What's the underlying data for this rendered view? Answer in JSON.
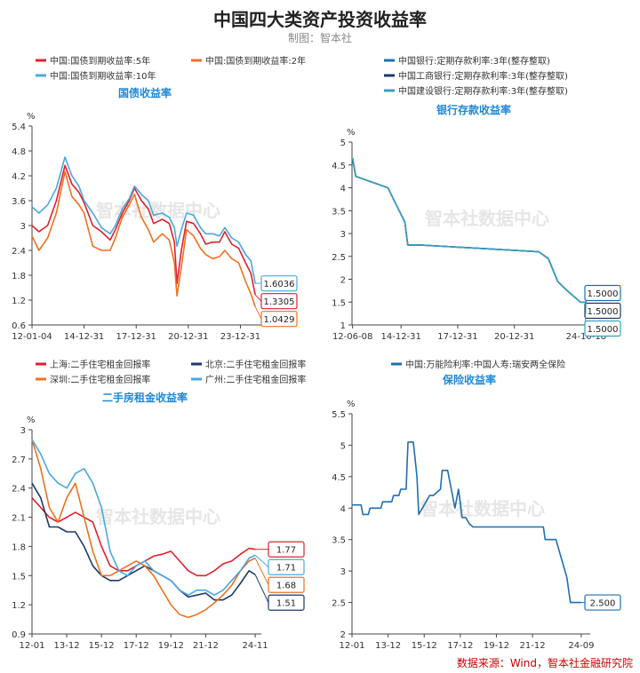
{
  "page": {
    "title": "中国四大类资产投资收益率",
    "subtitle": "制图：智本社",
    "source": "数据来源：Wind，智本社金融研究院",
    "watermark": "智本社数据中心"
  },
  "chart_data": [
    {
      "type": "line",
      "title": "国债收益率",
      "ylabel": "%",
      "ylim": [
        0.6,
        5.4
      ],
      "yticks": [
        0.6,
        1.2,
        1.8,
        2.4,
        3,
        3.6,
        4.2,
        4.8,
        5.4
      ],
      "ytick_labels": [
        "0.6",
        "1.2",
        "1.8",
        "2.4",
        "3",
        "3.6",
        "4.2",
        "4.8",
        "5.4"
      ],
      "xlim": [
        2012.0,
        2025.0
      ],
      "xticks": [
        2012.0,
        2015.0,
        2018.0,
        2021.0,
        2024.0
      ],
      "xtick_labels": [
        "12-01-04",
        "14-12-31",
        "17-12-31",
        "20-12-31",
        "23-12-31"
      ],
      "legend_position": "top",
      "series": [
        {
          "name": "中国:国债到期收益率:5年",
          "color": "#e0202c",
          "end_label": "1.3305",
          "x": [
            2012.0,
            2012.4,
            2012.9,
            2013.4,
            2013.9,
            2014.3,
            2014.7,
            2015.0,
            2015.5,
            2016.0,
            2016.5,
            2016.8,
            2017.2,
            2017.6,
            2017.9,
            2018.3,
            2018.7,
            2019.0,
            2019.5,
            2019.9,
            2020.2,
            2020.35,
            2020.6,
            2020.9,
            2021.3,
            2021.7,
            2022.0,
            2022.4,
            2022.8,
            2023.1,
            2023.5,
            2023.9,
            2024.3,
            2024.6,
            2024.85
          ],
          "values": [
            3.0,
            2.85,
            3.0,
            3.6,
            4.45,
            4.0,
            3.8,
            3.55,
            3.0,
            2.85,
            2.65,
            2.9,
            3.3,
            3.6,
            3.9,
            3.6,
            3.4,
            3.05,
            3.15,
            3.05,
            2.6,
            1.6,
            2.4,
            3.1,
            3.05,
            2.8,
            2.55,
            2.6,
            2.6,
            2.85,
            2.55,
            2.45,
            2.1,
            1.85,
            1.3305
          ]
        },
        {
          "name": "中国:国债到期收益率:2年",
          "color": "#f07020",
          "end_label": "1.0429",
          "x": [
            2012.0,
            2012.4,
            2012.9,
            2013.4,
            2013.9,
            2014.3,
            2014.7,
            2015.0,
            2015.5,
            2016.0,
            2016.5,
            2016.8,
            2017.2,
            2017.6,
            2017.9,
            2018.3,
            2018.7,
            2019.0,
            2019.5,
            2019.9,
            2020.2,
            2020.35,
            2020.6,
            2020.9,
            2021.3,
            2021.7,
            2022.0,
            2022.4,
            2022.8,
            2023.1,
            2023.5,
            2023.9,
            2024.3,
            2024.6,
            2024.85
          ],
          "values": [
            2.75,
            2.4,
            2.7,
            3.3,
            4.3,
            3.7,
            3.5,
            3.3,
            2.5,
            2.4,
            2.4,
            2.7,
            3.2,
            3.5,
            3.75,
            3.2,
            2.9,
            2.6,
            2.8,
            2.65,
            2.1,
            1.3,
            2.0,
            2.9,
            2.75,
            2.45,
            2.3,
            2.2,
            2.25,
            2.4,
            2.2,
            2.1,
            1.65,
            1.35,
            1.0429
          ]
        },
        {
          "name": "中国:国债到期收益率:10年",
          "color": "#4aa8e0",
          "end_label": "1.6036",
          "x": [
            2012.0,
            2012.4,
            2012.9,
            2013.4,
            2013.9,
            2014.3,
            2014.7,
            2015.0,
            2015.5,
            2016.0,
            2016.5,
            2016.8,
            2017.2,
            2017.6,
            2017.9,
            2018.3,
            2018.7,
            2019.0,
            2019.5,
            2019.9,
            2020.2,
            2020.35,
            2020.6,
            2020.9,
            2021.3,
            2021.7,
            2022.0,
            2022.4,
            2022.8,
            2023.1,
            2023.5,
            2023.9,
            2024.3,
            2024.6,
            2024.85
          ],
          "values": [
            3.45,
            3.3,
            3.5,
            3.9,
            4.65,
            4.2,
            3.95,
            3.6,
            3.3,
            2.95,
            2.8,
            3.0,
            3.4,
            3.65,
            3.95,
            3.75,
            3.6,
            3.25,
            3.3,
            3.2,
            2.95,
            2.5,
            2.9,
            3.3,
            3.25,
            2.95,
            2.8,
            2.8,
            2.75,
            2.95,
            2.7,
            2.6,
            2.3,
            2.15,
            1.6036
          ]
        }
      ]
    },
    {
      "type": "line",
      "title": "银行存款收益率",
      "ylabel": "%",
      "ylim": [
        1,
        5
      ],
      "yticks": [
        1,
        1.5,
        2,
        2.5,
        3,
        3.5,
        4,
        4.5,
        5
      ],
      "ytick_labels": [
        "1",
        "1.5",
        "2",
        "2.5",
        "3",
        "3.5",
        "4",
        "4.5",
        "5"
      ],
      "xlim": [
        2012.4,
        2025.3
      ],
      "xticks": [
        2012.43,
        2015.0,
        2018.0,
        2021.0,
        2024.8
      ],
      "xtick_labels": [
        "12-06-08",
        "14-12-31",
        "17-12-31",
        "20-12-31",
        "24-10-18"
      ],
      "legend_position": "top-right",
      "series": [
        {
          "name": "中国银行:定期存款利率:3年(整存整取)",
          "color": "#1f6fb0",
          "end_label": "1.5000",
          "x": [
            2012.43,
            2012.6,
            2014.3,
            2014.6,
            2014.9,
            2015.2,
            2015.35,
            2016.0,
            2022.3,
            2022.8,
            2023.3,
            2023.8,
            2024.5,
            2024.8
          ],
          "values": [
            4.65,
            4.25,
            4.0,
            3.75,
            3.5,
            3.25,
            2.75,
            2.75,
            2.6,
            2.45,
            1.95,
            1.75,
            1.5,
            1.5
          ]
        },
        {
          "name": "中国工商银行:定期存款利率:3年(整存整取)",
          "color": "#1a3a6a",
          "end_label": "1.5000",
          "x": [
            2012.43,
            2012.6,
            2014.3,
            2014.6,
            2014.9,
            2015.2,
            2015.35,
            2016.0,
            2022.3,
            2022.8,
            2023.3,
            2023.8,
            2024.5,
            2024.8
          ],
          "values": [
            4.65,
            4.25,
            4.0,
            3.75,
            3.5,
            3.25,
            2.75,
            2.75,
            2.6,
            2.45,
            1.95,
            1.75,
            1.5,
            1.5
          ]
        },
        {
          "name": "中国建设银行:定期存款利率:3年(整存整取)",
          "color": "#3aa0c0",
          "end_label": "1.5000",
          "x": [
            2012.43,
            2012.6,
            2014.3,
            2014.6,
            2014.9,
            2015.2,
            2015.35,
            2016.0,
            2022.3,
            2022.8,
            2023.3,
            2023.8,
            2024.5,
            2024.8
          ],
          "values": [
            4.65,
            4.25,
            4.0,
            3.75,
            3.5,
            3.25,
            2.75,
            2.75,
            2.6,
            2.45,
            1.95,
            1.75,
            1.5,
            1.5
          ]
        }
      ]
    },
    {
      "type": "line",
      "title": "二手房租金收益率",
      "ylabel": "%",
      "ylim": [
        0.9,
        3
      ],
      "yticks": [
        0.9,
        1.2,
        1.5,
        1.8,
        2.1,
        2.4,
        2.7,
        3
      ],
      "ytick_labels": [
        "0.9",
        "1.2",
        "1.5",
        "1.8",
        "2.1",
        "2.4",
        "2.7",
        "3"
      ],
      "xlim": [
        2012.0,
        2025.0
      ],
      "xticks": [
        2012.0,
        2014.0,
        2016.0,
        2018.0,
        2020.0,
        2022.0,
        2024.85
      ],
      "xtick_labels": [
        "12-01",
        "13-12",
        "15-12",
        "17-12",
        "19-12",
        "21-12",
        "24-11"
      ],
      "legend_position": "top",
      "series": [
        {
          "name": "上海:二手住宅租金回报率",
          "color": "#e0202c",
          "end_label": "1.77",
          "x": [
            2012.0,
            2012.5,
            2013.0,
            2013.5,
            2014.0,
            2014.5,
            2015.0,
            2015.5,
            2016.0,
            2016.5,
            2017.0,
            2017.5,
            2018.0,
            2018.5,
            2019.0,
            2019.5,
            2020.0,
            2020.5,
            2021.0,
            2021.5,
            2022.0,
            2022.5,
            2023.0,
            2023.5,
            2024.0,
            2024.5,
            2024.85
          ],
          "values": [
            2.3,
            2.2,
            2.1,
            2.05,
            2.1,
            2.15,
            2.1,
            2.05,
            1.8,
            1.6,
            1.55,
            1.55,
            1.6,
            1.65,
            1.7,
            1.72,
            1.75,
            1.65,
            1.55,
            1.5,
            1.5,
            1.55,
            1.62,
            1.65,
            1.72,
            1.78,
            1.77
          ]
        },
        {
          "name": "北京:二手住宅租金回报率",
          "color": "#1a3a6a",
          "end_label": "1.51",
          "x": [
            2012.0,
            2012.5,
            2013.0,
            2013.5,
            2014.0,
            2014.5,
            2015.0,
            2015.5,
            2016.0,
            2016.5,
            2017.0,
            2017.5,
            2018.0,
            2018.5,
            2019.0,
            2019.5,
            2020.0,
            2020.5,
            2021.0,
            2021.5,
            2022.0,
            2022.5,
            2023.0,
            2023.5,
            2024.0,
            2024.5,
            2024.85
          ],
          "values": [
            2.45,
            2.3,
            2.0,
            2.0,
            1.95,
            1.95,
            1.8,
            1.6,
            1.5,
            1.45,
            1.45,
            1.5,
            1.55,
            1.6,
            1.55,
            1.5,
            1.45,
            1.35,
            1.28,
            1.3,
            1.32,
            1.25,
            1.25,
            1.3,
            1.42,
            1.55,
            1.51
          ]
        },
        {
          "name": "深圳:二手住宅租金回报率",
          "color": "#f07020",
          "end_label": "1.68",
          "x": [
            2012.0,
            2012.5,
            2013.0,
            2013.5,
            2014.0,
            2014.5,
            2015.0,
            2015.5,
            2016.0,
            2016.5,
            2017.0,
            2017.5,
            2018.0,
            2018.5,
            2019.0,
            2019.5,
            2020.0,
            2020.5,
            2021.0,
            2021.5,
            2022.0,
            2022.5,
            2023.0,
            2023.5,
            2024.0,
            2024.5,
            2024.85
          ],
          "values": [
            2.9,
            2.6,
            2.2,
            2.05,
            2.3,
            2.45,
            2.1,
            1.75,
            1.5,
            1.5,
            1.55,
            1.6,
            1.65,
            1.6,
            1.5,
            1.35,
            1.2,
            1.1,
            1.07,
            1.1,
            1.15,
            1.22,
            1.3,
            1.4,
            1.55,
            1.65,
            1.68
          ]
        },
        {
          "name": "广州:二手住宅租金回报率",
          "color": "#4aa8e0",
          "end_label": "1.71",
          "x": [
            2012.0,
            2012.5,
            2013.0,
            2013.5,
            2014.0,
            2014.5,
            2015.0,
            2015.5,
            2016.0,
            2016.5,
            2017.0,
            2017.5,
            2018.0,
            2018.5,
            2019.0,
            2019.5,
            2020.0,
            2020.5,
            2021.0,
            2021.5,
            2022.0,
            2022.5,
            2023.0,
            2023.5,
            2024.0,
            2024.5,
            2024.85
          ],
          "values": [
            2.9,
            2.75,
            2.55,
            2.45,
            2.4,
            2.55,
            2.6,
            2.45,
            2.2,
            1.75,
            1.55,
            1.5,
            1.6,
            1.65,
            1.55,
            1.5,
            1.45,
            1.35,
            1.3,
            1.35,
            1.35,
            1.3,
            1.35,
            1.45,
            1.55,
            1.68,
            1.71
          ]
        }
      ]
    },
    {
      "type": "line",
      "title": "保险收益率",
      "ylabel": "%",
      "ylim": [
        2,
        5.5
      ],
      "yticks": [
        2,
        2.5,
        3,
        3.5,
        4,
        4.5,
        5,
        5.5
      ],
      "ytick_labels": [
        "2",
        "2.5",
        "3",
        "3.5",
        "4",
        "4.5",
        "5",
        "5.5"
      ],
      "xlim": [
        2012.0,
        2025.0
      ],
      "xticks": [
        2012.0,
        2014.0,
        2016.0,
        2018.0,
        2020.0,
        2022.0,
        2024.7
      ],
      "xtick_labels": [
        "12-01",
        "13-12",
        "15-12",
        "17-12",
        "19-12",
        "21-12",
        "24-09"
      ],
      "legend_position": "top",
      "series": [
        {
          "name": "中国:万能险利率:中国人寿:瑞安两全保险",
          "color": "#1f6fb0",
          "end_label": "2.500",
          "x": [
            2012.0,
            2012.5,
            2012.6,
            2012.9,
            2013.0,
            2013.6,
            2013.7,
            2014.2,
            2014.3,
            2014.6,
            2014.7,
            2015.0,
            2015.1,
            2015.4,
            2015.6,
            2015.7,
            2015.9,
            2016.3,
            2016.5,
            2016.9,
            2017.0,
            2017.3,
            2017.5,
            2017.7,
            2017.9,
            2018.1,
            2018.3,
            2018.5,
            2018.7,
            2019.0,
            2021.5,
            2022.6,
            2022.7,
            2023.3,
            2023.5,
            2023.9,
            2024.1,
            2024.7
          ],
          "values": [
            4.05,
            4.05,
            3.9,
            3.9,
            4.0,
            4.0,
            4.1,
            4.1,
            4.2,
            4.2,
            4.3,
            4.3,
            5.05,
            5.05,
            4.5,
            3.9,
            4.0,
            4.2,
            4.2,
            4.3,
            4.6,
            4.6,
            4.3,
            4.0,
            4.3,
            3.85,
            3.85,
            3.75,
            3.7,
            3.7,
            3.7,
            3.7,
            3.5,
            3.5,
            3.3,
            2.9,
            2.5,
            2.5
          ]
        }
      ]
    }
  ]
}
